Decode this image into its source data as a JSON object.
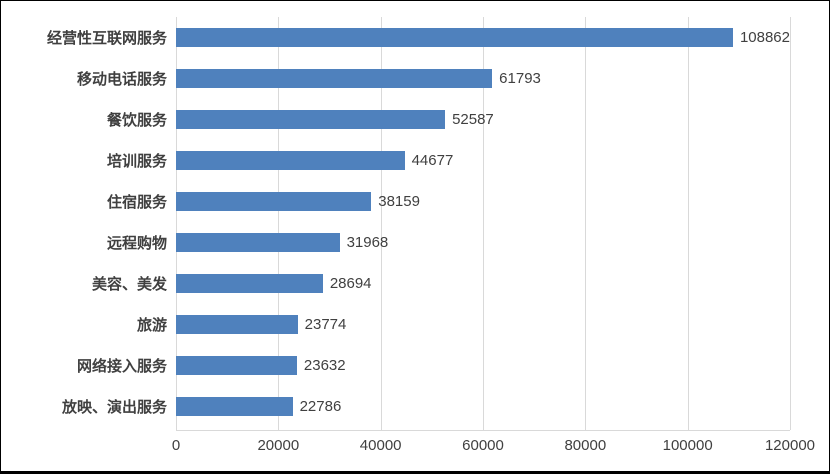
{
  "chart_data": {
    "type": "bar",
    "orientation": "horizontal",
    "title": "",
    "xlabel": "",
    "ylabel": "",
    "categories": [
      "经营性互联网服务",
      "移动电话服务",
      "餐饮服务",
      "培训服务",
      "住宿服务",
      "远程购物",
      "美容、美发",
      "旅游",
      "网络接入服务",
      "放映、演出服务"
    ],
    "values": [
      108862,
      61793,
      52587,
      44677,
      38159,
      31968,
      28694,
      23774,
      23632,
      22786
    ],
    "x_ticks": [
      0,
      20000,
      40000,
      60000,
      80000,
      100000,
      120000
    ],
    "xlim": [
      0,
      120000
    ],
    "grid": true,
    "legend": false,
    "value_labels": true
  },
  "colors": {
    "bar": "#4F81BD",
    "grid": "#D9D9D9",
    "text": "#404040",
    "background": "#FFFFFF"
  }
}
